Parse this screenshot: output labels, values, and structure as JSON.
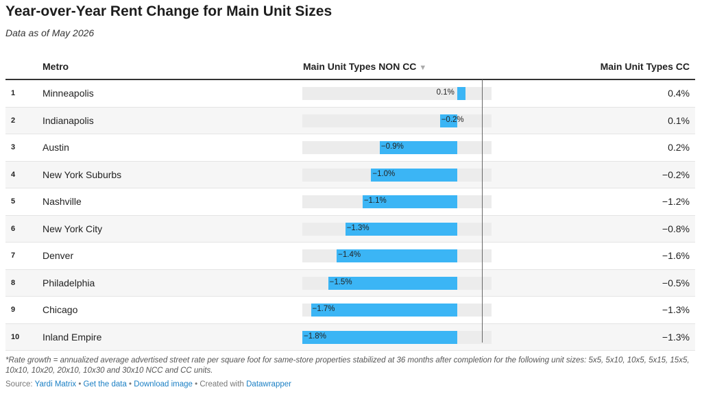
{
  "title": "Year-over-Year Rent Change for Main Unit Sizes",
  "subtitle": "Data as of May 2026",
  "headers": {
    "metro": "Metro",
    "non_cc": "Main Unit Types NON CC",
    "sort_icon": "▼",
    "cc": "Main Unit Types CC"
  },
  "chart_data": {
    "type": "table",
    "columns": [
      "Metro",
      "Main Unit Types NON CC",
      "Main Unit Types CC"
    ],
    "bar_range": [
      -1.8,
      0.4
    ],
    "rows": [
      {
        "rank": "1",
        "metro": "Minneapolis",
        "non_cc": 0.1,
        "non_cc_label": "0.1%",
        "cc": "0.4%"
      },
      {
        "rank": "2",
        "metro": "Indianapolis",
        "non_cc": -0.2,
        "non_cc_label": "−0.2%",
        "cc": "0.1%"
      },
      {
        "rank": "3",
        "metro": "Austin",
        "non_cc": -0.9,
        "non_cc_label": "−0.9%",
        "cc": "0.2%"
      },
      {
        "rank": "4",
        "metro": "New York Suburbs",
        "non_cc": -1.0,
        "non_cc_label": "−1.0%",
        "cc": "−0.2%"
      },
      {
        "rank": "5",
        "metro": "Nashville",
        "non_cc": -1.1,
        "non_cc_label": "−1.1%",
        "cc": "−1.2%"
      },
      {
        "rank": "6",
        "metro": "New York City",
        "non_cc": -1.3,
        "non_cc_label": "−1.3%",
        "cc": "−0.8%"
      },
      {
        "rank": "7",
        "metro": "Denver",
        "non_cc": -1.4,
        "non_cc_label": "−1.4%",
        "cc": "−1.6%"
      },
      {
        "rank": "8",
        "metro": "Philadelphia",
        "non_cc": -1.5,
        "non_cc_label": "−1.5%",
        "cc": "−0.5%"
      },
      {
        "rank": "9",
        "metro": "Chicago",
        "non_cc": -1.7,
        "non_cc_label": "−1.7%",
        "cc": "−1.3%"
      },
      {
        "rank": "10",
        "metro": "Inland Empire",
        "non_cc": -1.8,
        "non_cc_label": "−1.8%",
        "cc": "−1.3%"
      }
    ],
    "bar_color": "#3bb5f5"
  },
  "note": "*Rate growth = annualized average advertised street rate per square foot for same-store properties stabilized at 36 months after completion for the following unit sizes: 5x5, 5x10, 10x5, 5x15, 15x5, 10x10, 10x20, 20x10, 10x30 and 30x10 NCC and CC units.",
  "source": {
    "prefix": "Source: ",
    "source_name": "Yardi Matrix",
    "sep": " • ",
    "get_data": "Get the data",
    "download": "Download image",
    "created": "Created with ",
    "tool": "Datawrapper"
  }
}
